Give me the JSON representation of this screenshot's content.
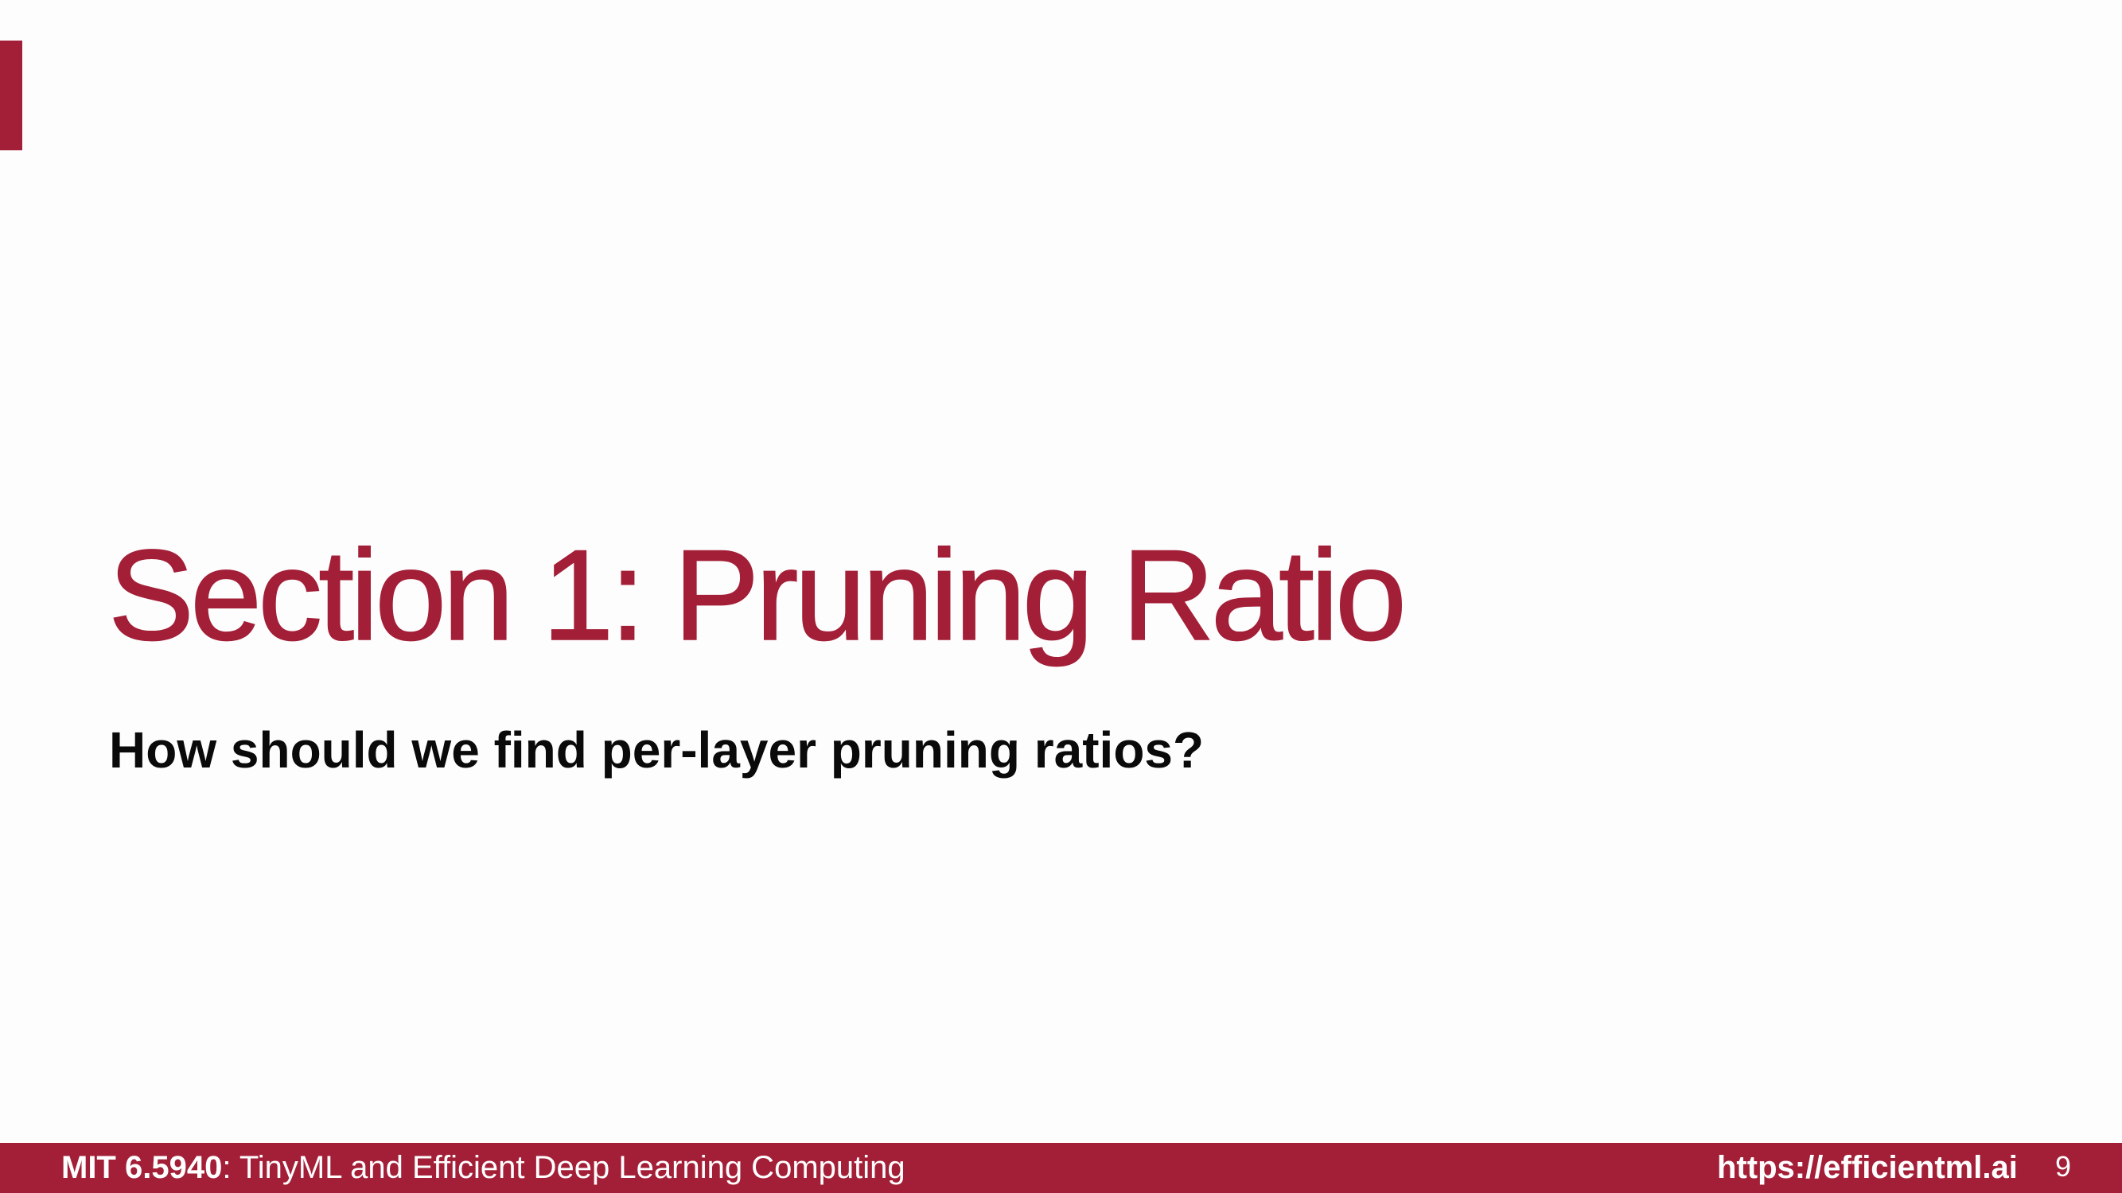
{
  "slide": {
    "title": "Section 1: Pruning Ratio",
    "subtitle": "How should we find per-layer pruning ratios?"
  },
  "footer": {
    "course_code": "MIT 6.5940",
    "separator": ": ",
    "course_name": "TinyML and Efficient Deep Learning Computing",
    "url": "https://efficientml.ai",
    "page_number": "9"
  },
  "colors": {
    "accent": "#a31f37",
    "background": "#fdfdfe",
    "text": "#0a0a0a",
    "footer_text": "#ffffff"
  }
}
